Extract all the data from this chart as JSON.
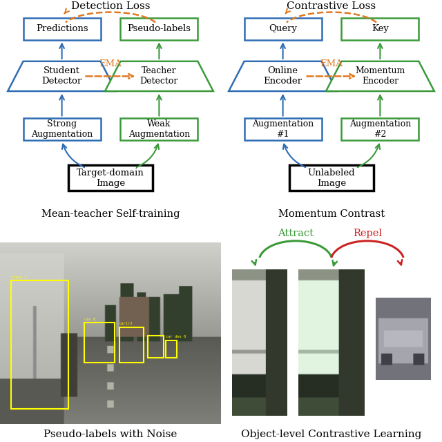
{
  "bg_left": "#f5d8be",
  "bg_right": "#faebbe",
  "bg_bottom_left": "#d8d0c8",
  "bg_bottom_right": "#d8e4ee",
  "blue": "#2e6db4",
  "green": "#3a9a3a",
  "orange": "#e07820",
  "red": "#cc2222",
  "black": "#111111",
  "title_fontsize": 11,
  "label_fontsize": 9.5,
  "small_fontsize": 8.5,
  "left_panel_title": "Mean-teacher Self-training",
  "right_panel_title": "Momentum Contrast",
  "bottom_left_title": "Pseudo-labels with Noise",
  "bottom_right_title": "Object-level Contrastive Learning",
  "det_loss_label": "Detection Loss",
  "cont_loss_label": "Contrastive Loss",
  "ema_label": "EMA",
  "attract_label": "Attract",
  "repel_label": "Repel"
}
